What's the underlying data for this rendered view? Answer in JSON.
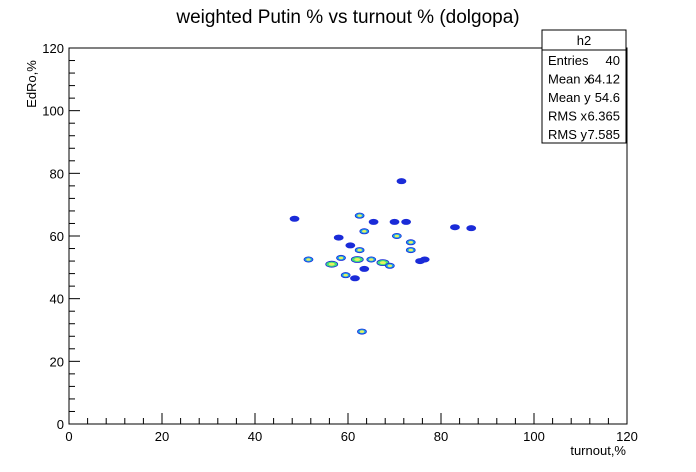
{
  "chart_data": {
    "type": "scatter",
    "title": "weighted Putin % vs turnout % (dolgopa)",
    "xlabel": "turnout,%",
    "ylabel": "EdRo,%",
    "xlim": [
      0,
      120
    ],
    "ylim": [
      0,
      120
    ],
    "x_ticks": [
      "0",
      "20",
      "40",
      "60",
      "80",
      "100",
      "120"
    ],
    "y_ticks": [
      "0",
      "20",
      "40",
      "60",
      "80",
      "100",
      "120"
    ],
    "grid": false,
    "colors": {
      "low": "#1a2bd8",
      "mid": "#1aa0e8",
      "high": "#3fe07a"
    },
    "series": [
      {
        "points": [
          {
            "x": 48.5,
            "y": 65.5,
            "level": "low"
          },
          {
            "x": 62.5,
            "y": 66.5,
            "level": "mid"
          },
          {
            "x": 63.5,
            "y": 61.5,
            "level": "mid"
          },
          {
            "x": 65.5,
            "y": 64.5,
            "level": "low"
          },
          {
            "x": 70.0,
            "y": 64.5,
            "level": "low"
          },
          {
            "x": 72.5,
            "y": 64.5,
            "level": "low"
          },
          {
            "x": 71.5,
            "y": 77.5,
            "level": "low"
          },
          {
            "x": 83.0,
            "y": 62.8,
            "level": "low"
          },
          {
            "x": 86.5,
            "y": 62.5,
            "level": "low"
          },
          {
            "x": 58.0,
            "y": 59.5,
            "level": "low"
          },
          {
            "x": 60.5,
            "y": 57.0,
            "level": "low"
          },
          {
            "x": 62.5,
            "y": 55.5,
            "level": "mid"
          },
          {
            "x": 70.5,
            "y": 60.0,
            "level": "mid"
          },
          {
            "x": 73.5,
            "y": 58.0,
            "level": "mid"
          },
          {
            "x": 73.5,
            "y": 55.5,
            "level": "mid"
          },
          {
            "x": 51.5,
            "y": 52.5,
            "level": "mid"
          },
          {
            "x": 56.5,
            "y": 51.0,
            "level": "high"
          },
          {
            "x": 58.5,
            "y": 53.0,
            "level": "mid"
          },
          {
            "x": 62.0,
            "y": 52.5,
            "level": "high"
          },
          {
            "x": 65.0,
            "y": 52.5,
            "level": "mid"
          },
          {
            "x": 67.5,
            "y": 51.5,
            "level": "high"
          },
          {
            "x": 69.0,
            "y": 50.5,
            "level": "mid"
          },
          {
            "x": 75.5,
            "y": 52.0,
            "level": "low"
          },
          {
            "x": 76.5,
            "y": 52.5,
            "level": "low"
          },
          {
            "x": 63.5,
            "y": 49.5,
            "level": "low"
          },
          {
            "x": 59.5,
            "y": 47.5,
            "level": "mid"
          },
          {
            "x": 61.5,
            "y": 46.5,
            "level": "low"
          },
          {
            "x": 63.0,
            "y": 29.5,
            "level": "mid"
          }
        ]
      }
    ],
    "stats_box": {
      "title": "h2",
      "rows": [
        {
          "label": "Entries",
          "value": "40"
        },
        {
          "label": "Mean x",
          "value": "64.12"
        },
        {
          "label": "Mean y",
          "value": "54.6"
        },
        {
          "label": "RMS x",
          "value": "6.365"
        },
        {
          "label": "RMS y",
          "value": "7.585"
        }
      ]
    }
  }
}
